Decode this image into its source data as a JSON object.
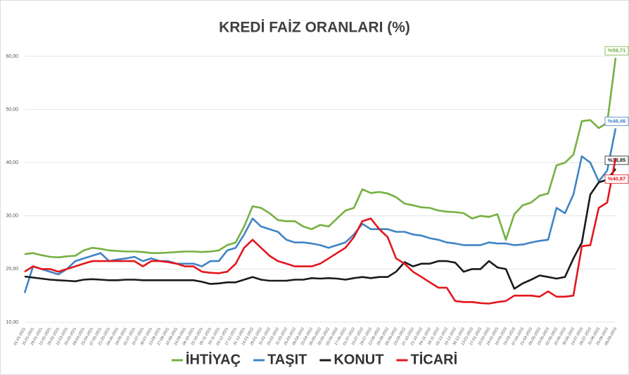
{
  "chart_data": {
    "type": "line",
    "title": "KREDİ FAİZ ORANLARI (%)",
    "categories": [
      "01-01-2021",
      "15-01-2021",
      "29-01-2021",
      "12-02-2021",
      "26-02-2021",
      "12-03-2021",
      "26-03-2021",
      "09-04-2021",
      "23-04-2021",
      "07-05-2021",
      "21-05-2021",
      "04-06-2021",
      "18-06-2021",
      "02-07-2021",
      "16-07-2021",
      "30-07-2021",
      "13-08-2021",
      "27-08-2021",
      "10-09-2021",
      "24-09-2021",
      "08-10-2021",
      "22-10-2021",
      "05-11-2021",
      "19-11-2021",
      "03-12-2021",
      "17-12-2021",
      "31-12-2021",
      "14-01-2022",
      "28-01-2022",
      "11-02-2022",
      "25-02-2022",
      "11-03-2022",
      "25-03-2022",
      "08-04-2022",
      "22-04-2022",
      "06-05-2022",
      "20-05-2022",
      "03-06-2022",
      "17-06-2022",
      "01-07-2022",
      "15-07-2022",
      "29-07-2022",
      "12-08-2022",
      "26-08-2022",
      "09-09-2022",
      "23-09-2022",
      "07-10-2022",
      "21-10-2022",
      "04-11-2022",
      "18-11-2022",
      "02-12-2022",
      "16-12-2022",
      "30-12-2022",
      "13-01-2023",
      "27-01-2023",
      "10-02-2023",
      "24-02-2023",
      "10-03-2023",
      "24-03-2023",
      "07-04-2023",
      "21-04-2023",
      "05-05-2023",
      "19-05-2023",
      "02-06-2023",
      "16-06-2023",
      "30-06-2023",
      "14-07-2023",
      "28-07-2023",
      "11-08-2023",
      "25-08-2023",
      "08-09-2023"
    ],
    "series": [
      {
        "name": "İHTİYAÇ",
        "color": "#76b041",
        "values": [
          22.8,
          23,
          22.6,
          22.3,
          22.2,
          22.4,
          22.5,
          23.5,
          24,
          23.8,
          23.5,
          23.4,
          23.3,
          23.3,
          23.2,
          23,
          23,
          23.1,
          23.2,
          23.3,
          23.3,
          23.2,
          23.3,
          23.5,
          24.5,
          25,
          28,
          31.8,
          31.5,
          30.5,
          29.2,
          29,
          29,
          28,
          27.5,
          28.3,
          28,
          29.5,
          31,
          31.5,
          35,
          34.3,
          34.5,
          34.2,
          33.5,
          32.3,
          32,
          31.6,
          31.5,
          31,
          30.8,
          30.7,
          30.5,
          29.5,
          30,
          29.8,
          30.3,
          25.5,
          30.3,
          32,
          32.5,
          33.8,
          34.2,
          39.5,
          40,
          41.5,
          47.8,
          48,
          46.5,
          47.5,
          59.71
        ],
        "value_labels": [
          null,
          null,
          null,
          null,
          null,
          null,
          null,
          null,
          null,
          null,
          null,
          null,
          null,
          null,
          null,
          null,
          null,
          null,
          null,
          null,
          null,
          null,
          null,
          null,
          null,
          null,
          null,
          null,
          null,
          null,
          null,
          null,
          null,
          null,
          null,
          null,
          null,
          null,
          null,
          null,
          null,
          null,
          null,
          null,
          null,
          null,
          null,
          null,
          null,
          null,
          null,
          null,
          null,
          null,
          null,
          null,
          null,
          null,
          null,
          null,
          null,
          null,
          null,
          null,
          null,
          null,
          null,
          null,
          null,
          null,
          "%59,71"
        ]
      },
      {
        "name": "TAŞIT",
        "color": "#3f84c6",
        "values": [
          15.5,
          20.5,
          20,
          19.5,
          19,
          20,
          21.5,
          22,
          22.5,
          23,
          21.5,
          21.8,
          22,
          22.3,
          21.5,
          22,
          21.5,
          21.5,
          21,
          21,
          21,
          20.5,
          21.5,
          21.5,
          23.5,
          24,
          26.5,
          29.5,
          28,
          27.5,
          27,
          25.5,
          25,
          25,
          24.8,
          24.5,
          24,
          24.5,
          25,
          26.5,
          28.5,
          27.5,
          27.5,
          27.5,
          27,
          27,
          26.5,
          26.3,
          25.8,
          25.5,
          25,
          24.8,
          24.5,
          24.5,
          24.5,
          25,
          24.8,
          24.8,
          24.5,
          24.6,
          25,
          25.3,
          25.5,
          31.5,
          30.5,
          34,
          41.2,
          40,
          36.5,
          38.5,
          46.46
        ],
        "value_labels": [
          null,
          null,
          null,
          null,
          null,
          null,
          null,
          null,
          null,
          null,
          null,
          null,
          null,
          null,
          null,
          null,
          null,
          null,
          null,
          null,
          null,
          null,
          null,
          null,
          null,
          null,
          null,
          null,
          null,
          null,
          null,
          null,
          null,
          null,
          null,
          null,
          null,
          null,
          null,
          null,
          null,
          null,
          null,
          null,
          null,
          null,
          null,
          null,
          null,
          null,
          null,
          null,
          null,
          null,
          null,
          null,
          null,
          null,
          null,
          null,
          null,
          null,
          null,
          null,
          null,
          null,
          null,
          null,
          null,
          null,
          "%46,46"
        ]
      },
      {
        "name": "KONUT",
        "color": "#1a1a1a",
        "values": [
          18.6,
          18.4,
          18.2,
          18,
          17.9,
          17.8,
          17.7,
          18,
          18.1,
          18,
          17.9,
          17.9,
          18,
          18,
          17.9,
          17.9,
          17.9,
          17.9,
          17.9,
          17.9,
          17.9,
          17.6,
          17.2,
          17.3,
          17.5,
          17.5,
          18,
          18.5,
          18,
          17.8,
          17.8,
          17.8,
          18,
          18,
          18.3,
          18.2,
          18.3,
          18.2,
          18,
          18.3,
          18.5,
          18.3,
          18.5,
          18.5,
          19.5,
          21.3,
          20.5,
          21,
          21,
          21.5,
          21.5,
          21.2,
          19.5,
          20,
          20,
          21.5,
          20.3,
          20,
          16.3,
          17.3,
          18,
          18.8,
          18.5,
          18.2,
          18.5,
          22,
          25,
          34,
          36.3,
          36.8,
          38.85
        ],
        "value_labels": [
          null,
          null,
          null,
          null,
          null,
          null,
          null,
          null,
          null,
          null,
          null,
          null,
          null,
          null,
          null,
          null,
          null,
          null,
          null,
          null,
          null,
          null,
          null,
          null,
          null,
          null,
          null,
          null,
          null,
          null,
          null,
          null,
          null,
          null,
          null,
          null,
          null,
          null,
          null,
          null,
          null,
          null,
          null,
          null,
          null,
          null,
          null,
          null,
          null,
          null,
          null,
          null,
          null,
          null,
          null,
          null,
          null,
          null,
          null,
          null,
          null,
          null,
          null,
          null,
          null,
          null,
          null,
          null,
          null,
          null,
          "%38,85"
        ]
      },
      {
        "name": "TİCARİ",
        "color": "#e3161d",
        "values": [
          19.5,
          20.5,
          20,
          20,
          19.5,
          20,
          20.5,
          21,
          21.5,
          21.5,
          21.5,
          21.5,
          21.5,
          21.5,
          20.5,
          21.5,
          21.5,
          21.3,
          21,
          20.5,
          20.5,
          19.5,
          19.3,
          19.2,
          19.5,
          21,
          24,
          25.5,
          24,
          22.5,
          21.5,
          21,
          20.5,
          20.5,
          20.5,
          21,
          22,
          23,
          24,
          26,
          29,
          29.5,
          27.5,
          26,
          22,
          21,
          19.5,
          18.5,
          17.5,
          16.5,
          16.5,
          14,
          13.8,
          13.8,
          13.6,
          13.5,
          13.8,
          14,
          15,
          15,
          15,
          14.8,
          15.8,
          14.8,
          14.8,
          15,
          24.3,
          24.5,
          31.5,
          32.5,
          40.87
        ],
        "value_labels": [
          null,
          null,
          null,
          null,
          null,
          null,
          null,
          null,
          null,
          null,
          null,
          null,
          null,
          null,
          null,
          null,
          null,
          null,
          null,
          null,
          null,
          null,
          null,
          null,
          null,
          null,
          null,
          null,
          null,
          null,
          null,
          null,
          null,
          null,
          null,
          null,
          null,
          null,
          null,
          null,
          null,
          null,
          null,
          null,
          null,
          null,
          null,
          null,
          null,
          null,
          null,
          null,
          null,
          null,
          null,
          null,
          null,
          null,
          null,
          null,
          null,
          null,
          null,
          null,
          null,
          null,
          null,
          null,
          null,
          null,
          "%40,87"
        ]
      }
    ],
    "ylim": [
      10,
      60
    ],
    "yticks": [
      {
        "value": 10,
        "label": "10,00"
      },
      {
        "value": 20,
        "label": "20,00"
      },
      {
        "value": 30,
        "label": "30,00"
      },
      {
        "value": 40,
        "label": "40,00"
      },
      {
        "value": 50,
        "label": "50,00"
      },
      {
        "value": 60,
        "label": "60,00"
      }
    ],
    "grid": true
  }
}
